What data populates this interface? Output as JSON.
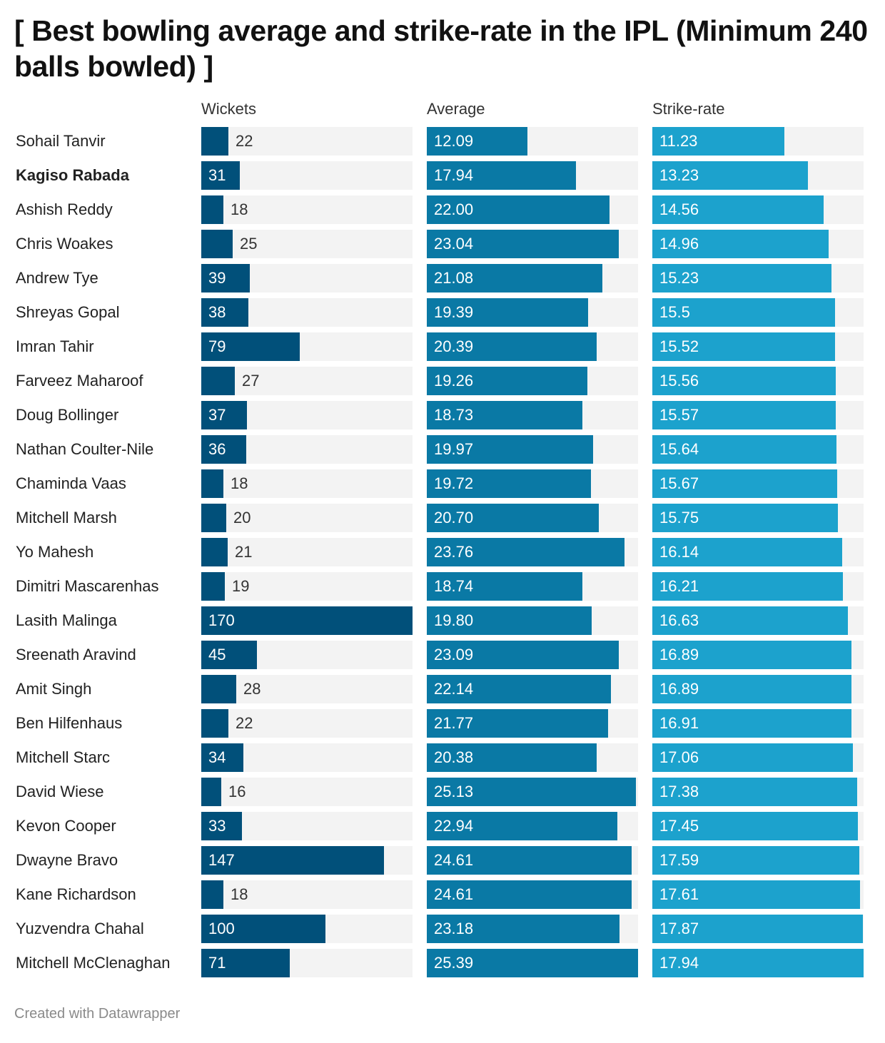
{
  "title": "[ Best bowling average and strike-rate in the IPL (Minimum 240 balls bowled) ]",
  "footer": "Created with Datawrapper",
  "colors": {
    "wickets": "#01507a",
    "average": "#0a79a5",
    "strike_rate": "#1ca2cd",
    "track": "#f3f3f3"
  },
  "chart_data": {
    "type": "bar",
    "title": "[ Best bowling average and strike-rate in the IPL (Minimum 240 balls bowled) ]",
    "columns": [
      "Wickets",
      "Average",
      "Strike-rate"
    ],
    "rows": [
      {
        "name": "Sohail Tanvir",
        "bold": false,
        "wickets": "22",
        "average": "12.09",
        "strike_rate": "11.23"
      },
      {
        "name": "Kagiso Rabada",
        "bold": true,
        "wickets": "31",
        "average": "17.94",
        "strike_rate": "13.23"
      },
      {
        "name": "Ashish Reddy",
        "bold": false,
        "wickets": "18",
        "average": "22.00",
        "strike_rate": "14.56"
      },
      {
        "name": "Chris Woakes",
        "bold": false,
        "wickets": "25",
        "average": "23.04",
        "strike_rate": "14.96"
      },
      {
        "name": "Andrew Tye",
        "bold": false,
        "wickets": "39",
        "average": "21.08",
        "strike_rate": "15.23"
      },
      {
        "name": "Shreyas Gopal",
        "bold": false,
        "wickets": "38",
        "average": "19.39",
        "strike_rate": "15.5"
      },
      {
        "name": "Imran Tahir",
        "bold": false,
        "wickets": "79",
        "average": "20.39",
        "strike_rate": "15.52"
      },
      {
        "name": "Farveez Maharoof",
        "bold": false,
        "wickets": "27",
        "average": "19.26",
        "strike_rate": "15.56"
      },
      {
        "name": "Doug Bollinger",
        "bold": false,
        "wickets": "37",
        "average": "18.73",
        "strike_rate": "15.57"
      },
      {
        "name": "Nathan Coulter-Nile",
        "bold": false,
        "wickets": "36",
        "average": "19.97",
        "strike_rate": "15.64"
      },
      {
        "name": "Chaminda Vaas",
        "bold": false,
        "wickets": "18",
        "average": "19.72",
        "strike_rate": "15.67"
      },
      {
        "name": "Mitchell Marsh",
        "bold": false,
        "wickets": "20",
        "average": "20.70",
        "strike_rate": "15.75"
      },
      {
        "name": "Yo Mahesh",
        "bold": false,
        "wickets": "21",
        "average": "23.76",
        "strike_rate": "16.14"
      },
      {
        "name": "Dimitri Mascarenhas",
        "bold": false,
        "wickets": "19",
        "average": "18.74",
        "strike_rate": "16.21"
      },
      {
        "name": "Lasith Malinga",
        "bold": false,
        "wickets": "170",
        "average": "19.80",
        "strike_rate": "16.63"
      },
      {
        "name": "Sreenath Aravind",
        "bold": false,
        "wickets": "45",
        "average": "23.09",
        "strike_rate": "16.89"
      },
      {
        "name": "Amit Singh",
        "bold": false,
        "wickets": "28",
        "average": "22.14",
        "strike_rate": "16.89"
      },
      {
        "name": "Ben Hilfenhaus",
        "bold": false,
        "wickets": "22",
        "average": "21.77",
        "strike_rate": "16.91"
      },
      {
        "name": "Mitchell Starc",
        "bold": false,
        "wickets": "34",
        "average": "20.38",
        "strike_rate": "17.06"
      },
      {
        "name": "David Wiese",
        "bold": false,
        "wickets": "16",
        "average": "25.13",
        "strike_rate": "17.38"
      },
      {
        "name": "Kevon Cooper",
        "bold": false,
        "wickets": "33",
        "average": "22.94",
        "strike_rate": "17.45"
      },
      {
        "name": "Dwayne Bravo",
        "bold": false,
        "wickets": "147",
        "average": "24.61",
        "strike_rate": "17.59"
      },
      {
        "name": "Kane Richardson",
        "bold": false,
        "wickets": "18",
        "average": "24.61",
        "strike_rate": "17.61"
      },
      {
        "name": "Yuzvendra Chahal",
        "bold": false,
        "wickets": "100",
        "average": "23.18",
        "strike_rate": "17.87"
      },
      {
        "name": "Mitchell McClenaghan",
        "bold": false,
        "wickets": "71",
        "average": "25.39",
        "strike_rate": "17.94"
      }
    ]
  }
}
